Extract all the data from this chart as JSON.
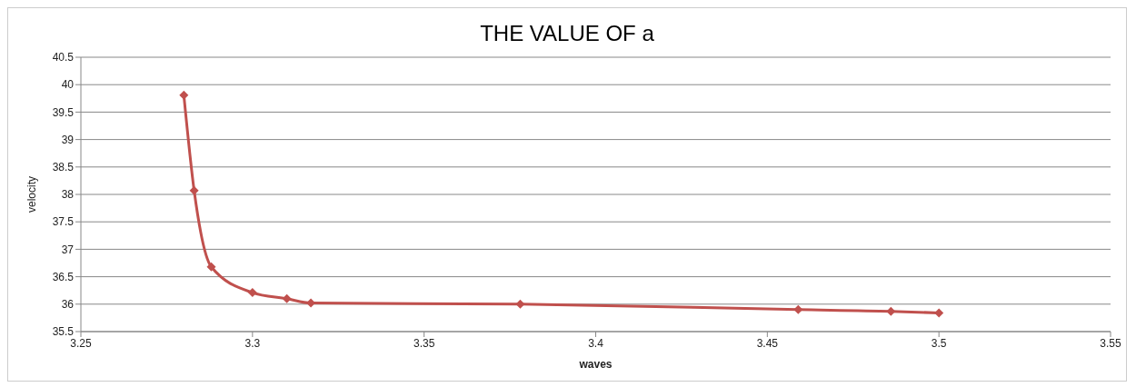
{
  "chart_data": {
    "type": "line",
    "title": "THE VALUE OF a",
    "xlabel": "waves",
    "ylabel": "velocity",
    "x": [
      3.28,
      3.283,
      3.288,
      3.3,
      3.31,
      3.317,
      3.378,
      3.459,
      3.486,
      3.5
    ],
    "series": [
      {
        "color": "#c0504d",
        "values": [
          39.81,
          38.07,
          36.68,
          36.21,
          36.1,
          36.02,
          36.0,
          35.9,
          35.87,
          35.84
        ]
      }
    ],
    "xlim": [
      3.25,
      3.55
    ],
    "xticks": [
      3.25,
      3.3,
      3.35,
      3.4,
      3.45,
      3.5,
      3.55
    ],
    "ylim": [
      35.5,
      40.5
    ],
    "yticks": [
      35.5,
      36,
      36.5,
      37,
      37.5,
      38,
      38.5,
      39,
      39.5,
      40,
      40.5
    ],
    "grid": "y",
    "marker": "diamond",
    "line_style": "solid"
  }
}
